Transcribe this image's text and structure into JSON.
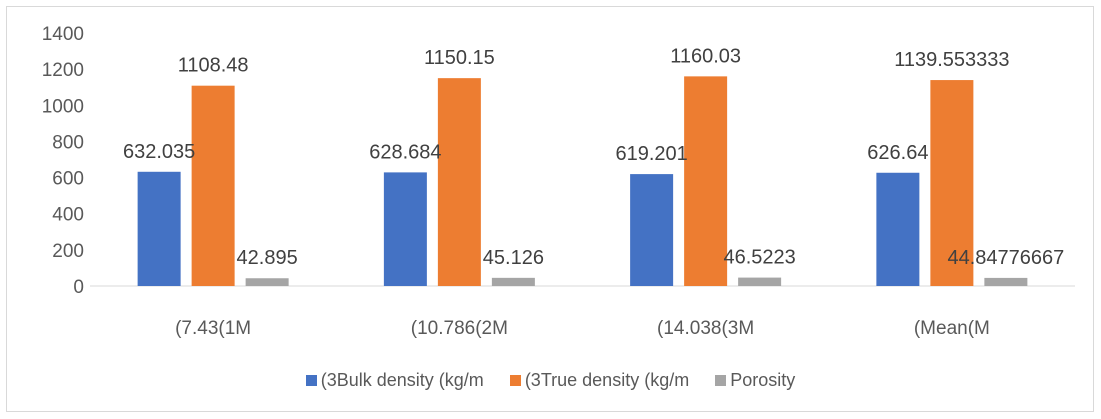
{
  "chart_data": {
    "type": "bar",
    "categories": [
      "(7.43(1M",
      "(10.786(2M",
      "(14.038(3M",
      "(Mean(M"
    ],
    "series": [
      {
        "name": "(3Bulk density (kg/m",
        "color": "#4472C4",
        "values": [
          632.035,
          628.684,
          619.201,
          626.64
        ],
        "labels": [
          "632.035",
          "628.684",
          "619.201",
          "626.64"
        ]
      },
      {
        "name": "(3True density (kg/m",
        "color": "#ED7D31",
        "values": [
          1108.48,
          1150.15,
          1160.03,
          1139.553333
        ],
        "labels": [
          "1108.48",
          "1150.15",
          "1160.03",
          "1139.553333"
        ]
      },
      {
        "name": "Porosity",
        "color": "#A5A5A5",
        "values": [
          42.895,
          45.126,
          46.5223,
          44.84776667
        ],
        "labels": [
          "42.895",
          "45.126",
          "46.5223",
          "44.84776667"
        ]
      }
    ],
    "yticks": [
      "0",
      "200",
      "400",
      "600",
      "800",
      "1000",
      "1200",
      "1400"
    ],
    "ylim": [
      0,
      1400
    ],
    "grid": false,
    "legend_position": "bottom"
  }
}
